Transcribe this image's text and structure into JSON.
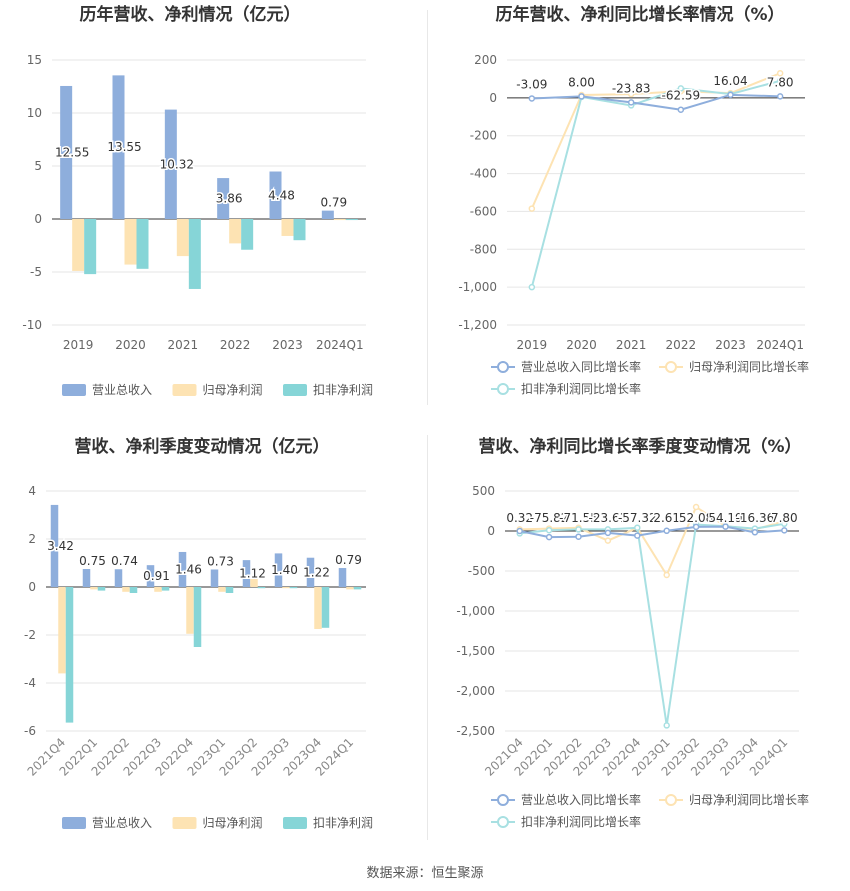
{
  "footer": "数据来源：恒生聚源",
  "colors": {
    "revenue": "#8eaedc",
    "net": "#fde3b3",
    "deduct": "#86d5d7"
  },
  "legend_bar": [
    "营业总收入",
    "归母净利润",
    "扣非净利润"
  ],
  "legend_line": [
    "营业总收入同比增长率",
    "归母净利润同比增长率",
    "扣非净利润同比增长率"
  ],
  "chart_data": [
    {
      "type": "bar",
      "title": "历年营收、净利情况（亿元）",
      "categories": [
        "2019",
        "2020",
        "2021",
        "2022",
        "2023",
        "2024Q1"
      ],
      "ylim": [
        -10,
        15
      ],
      "yticks": [
        -10,
        -5,
        0,
        5,
        10,
        15
      ],
      "series": [
        {
          "name": "营业总收入",
          "values": [
            12.55,
            13.55,
            10.32,
            3.86,
            4.48,
            0.79
          ],
          "labels": [
            "12.55",
            "13.55",
            "10.32",
            "3.86",
            "4.48",
            "0.79"
          ]
        },
        {
          "name": "归母净利润",
          "values": [
            -4.9,
            -4.3,
            -3.5,
            -2.3,
            -1.6,
            -0.1
          ]
        },
        {
          "name": "扣非净利润",
          "values": [
            -5.2,
            -4.7,
            -6.6,
            -2.9,
            -2.0,
            -0.1
          ]
        }
      ]
    },
    {
      "type": "line",
      "title": "历年营收、净利同比增长率情况（%）",
      "categories": [
        "2019",
        "2020",
        "2021",
        "2022",
        "2023",
        "2024Q1"
      ],
      "ylim": [
        -1200,
        200
      ],
      "yticks": [
        -1200,
        -1000,
        -800,
        -600,
        -400,
        -200,
        0,
        200
      ],
      "ytick_labels": [
        "-1,200",
        "-1,000",
        "-800",
        "-600",
        "-400",
        "-200",
        "0",
        "200"
      ],
      "series": [
        {
          "name": "营业总收入同比增长率",
          "values": [
            -3.09,
            8.0,
            -23.83,
            -62.59,
            16.04,
            7.8
          ],
          "labels": [
            "-3.09",
            "8.00",
            "-23.83",
            "-62.59",
            "16.04",
            "7.80"
          ]
        },
        {
          "name": "归母净利润同比增长率",
          "values": [
            -585,
            15,
            20,
            35,
            25,
            130
          ]
        },
        {
          "name": "扣非净利润同比增长率",
          "values": [
            -1000,
            5,
            -40,
            50,
            20,
            90
          ]
        }
      ]
    },
    {
      "type": "bar",
      "title": "营收、净利季度变动情况（亿元）",
      "categories": [
        "2021Q4",
        "2022Q1",
        "2022Q2",
        "2022Q3",
        "2022Q4",
        "2023Q1",
        "2023Q2",
        "2023Q3",
        "2023Q4",
        "2024Q1"
      ],
      "ylim": [
        -6,
        4
      ],
      "yticks": [
        -6,
        -4,
        -2,
        0,
        2,
        4
      ],
      "series": [
        {
          "name": "营业总收入",
          "values": [
            3.42,
            0.75,
            0.74,
            0.91,
            1.46,
            0.73,
            1.12,
            1.4,
            1.22,
            0.79
          ],
          "labels": [
            "3.42",
            "0.75",
            "0.74",
            "0.91",
            "1.46",
            "0.73",
            "1.12",
            "1.40",
            "1.22",
            "0.79"
          ]
        },
        {
          "name": "归母净利润",
          "values": [
            -3.6,
            -0.1,
            -0.2,
            -0.2,
            -1.95,
            -0.2,
            0.4,
            -0.05,
            -1.75,
            -0.1
          ]
        },
        {
          "name": "扣非净利润",
          "values": [
            -5.65,
            -0.15,
            -0.25,
            -0.15,
            -2.5,
            -0.25,
            -0.05,
            -0.05,
            -1.7,
            -0.1
          ]
        }
      ]
    },
    {
      "type": "line",
      "title": "营收、净利同比增长率季度变动情况（%）",
      "categories": [
        "2021Q4",
        "2022Q1",
        "2022Q2",
        "2022Q3",
        "2022Q4",
        "2023Q1",
        "2023Q2",
        "2023Q3",
        "2023Q4",
        "2024Q1"
      ],
      "ylim": [
        -2500,
        500
      ],
      "yticks": [
        -2500,
        -2000,
        -1500,
        -1000,
        -500,
        0,
        500
      ],
      "ytick_labels": [
        "-2,500",
        "-2,000",
        "-1,500",
        "-1,000",
        "-500",
        "0",
        "500"
      ],
      "series": [
        {
          "name": "营业总收入同比增长率",
          "values": [
            0.32,
            -75.82,
            -71.55,
            -23.61,
            -57.32,
            2.61,
            52.08,
            54.19,
            -16.36,
            7.8
          ],
          "labels": [
            "0.32",
            "-75.82",
            "-71.55",
            "-23.61",
            "-57.32",
            "2.61",
            "52.08",
            "54.19",
            "-16.36",
            "7.80"
          ]
        },
        {
          "name": "归母净利润同比增长率",
          "values": [
            20,
            30,
            40,
            -120,
            40,
            -550,
            300,
            60,
            20,
            120
          ]
        },
        {
          "name": "扣非净利润同比增长率",
          "values": [
            -30,
            10,
            20,
            20,
            40,
            -2430,
            80,
            60,
            30,
            90
          ]
        }
      ]
    }
  ]
}
